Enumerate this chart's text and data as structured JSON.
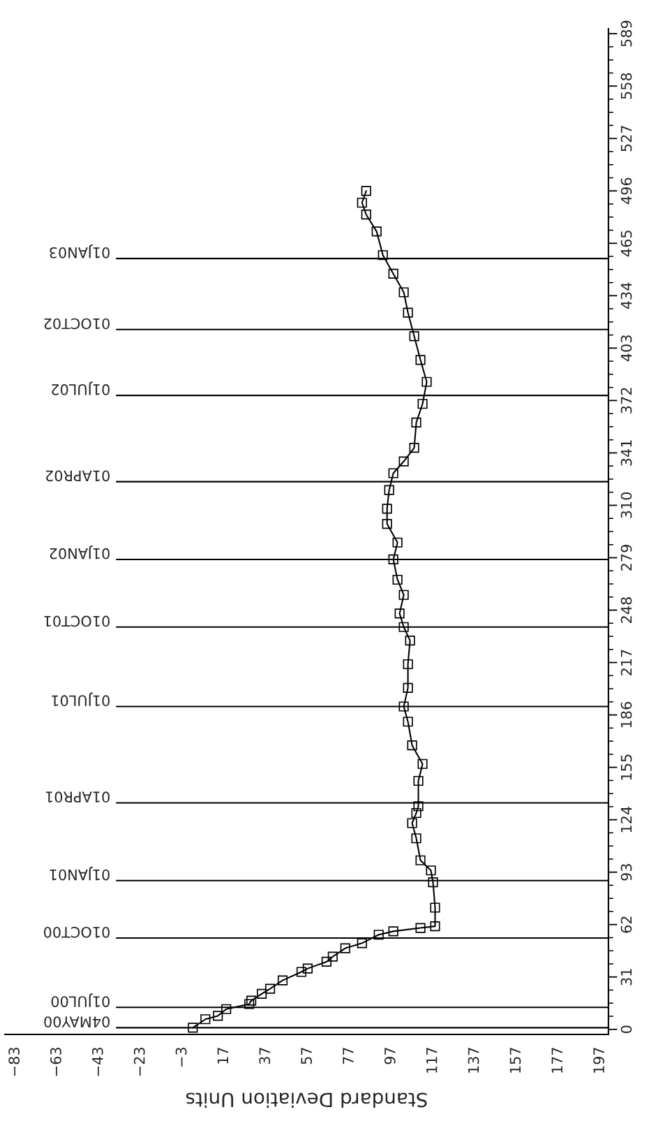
{
  "chart_data": {
    "type": "line",
    "orientation": "horizontal",
    "xlabel": "Standard Deviation Units",
    "x": [
      1,
      6,
      8,
      12,
      15,
      17,
      21,
      24,
      29,
      34,
      36,
      40,
      43,
      48,
      51,
      56,
      58,
      60,
      61,
      72,
      87,
      94,
      100,
      113,
      122,
      128,
      132,
      147,
      157,
      168,
      182,
      191,
      202,
      216,
      230,
      238,
      246,
      257,
      266,
      278,
      288,
      299,
      308,
      319,
      329,
      336,
      344,
      359,
      370,
      383,
      396,
      410,
      424,
      436,
      447,
      458,
      472,
      482,
      489,
      496
    ],
    "series": [
      {
        "color": "#000000",
        "values": [
          2,
          8,
          14,
          18,
          29,
          30,
          35,
          39,
          45,
          54,
          57,
          66,
          69,
          75,
          83,
          91,
          98,
          111,
          118,
          118,
          117,
          116,
          111,
          109,
          107,
          109,
          110,
          110,
          112,
          107,
          105,
          103,
          105,
          105,
          106,
          103,
          101,
          103,
          100,
          98,
          100,
          95,
          95,
          96,
          98,
          103,
          108,
          109,
          112,
          114,
          111,
          108,
          105,
          103,
          98,
          93,
          90,
          85,
          83,
          85
        ]
      }
    ],
    "marker": "square",
    "line_style": "solid",
    "xlim": [
      -88,
      201
    ],
    "xticks": [
      -83,
      -63,
      -43,
      -23,
      -3,
      17,
      37,
      57,
      77,
      97,
      117,
      137,
      157,
      177,
      197
    ],
    "ylim": [
      -3,
      592
    ],
    "yticks": [
      0,
      31,
      62,
      93,
      124,
      155,
      186,
      217,
      248,
      279,
      310,
      341,
      372,
      403,
      434,
      465,
      496,
      527,
      558,
      589
    ],
    "ref_lines": [
      {
        "axis": "y",
        "value": 1,
        "label": "04MAY00"
      },
      {
        "axis": "y",
        "value": 13,
        "label": "01JUL00"
      },
      {
        "axis": "y",
        "value": 54,
        "label": "01OCT00"
      },
      {
        "axis": "y",
        "value": 88,
        "label": "01JAN01"
      },
      {
        "axis": "y",
        "value": 134,
        "label": "01APR01"
      },
      {
        "axis": "y",
        "value": 191,
        "label": "01JUL01"
      },
      {
        "axis": "y",
        "value": 238,
        "label": "01OCT01"
      },
      {
        "axis": "y",
        "value": 278,
        "label": "01JAN02"
      },
      {
        "axis": "y",
        "value": 324,
        "label": "01APR02"
      },
      {
        "axis": "y",
        "value": 375,
        "label": "01JUL02"
      },
      {
        "axis": "y",
        "value": 414,
        "label": "01OCT02"
      },
      {
        "axis": "y",
        "value": 456,
        "label": "01JAN03"
      }
    ]
  }
}
